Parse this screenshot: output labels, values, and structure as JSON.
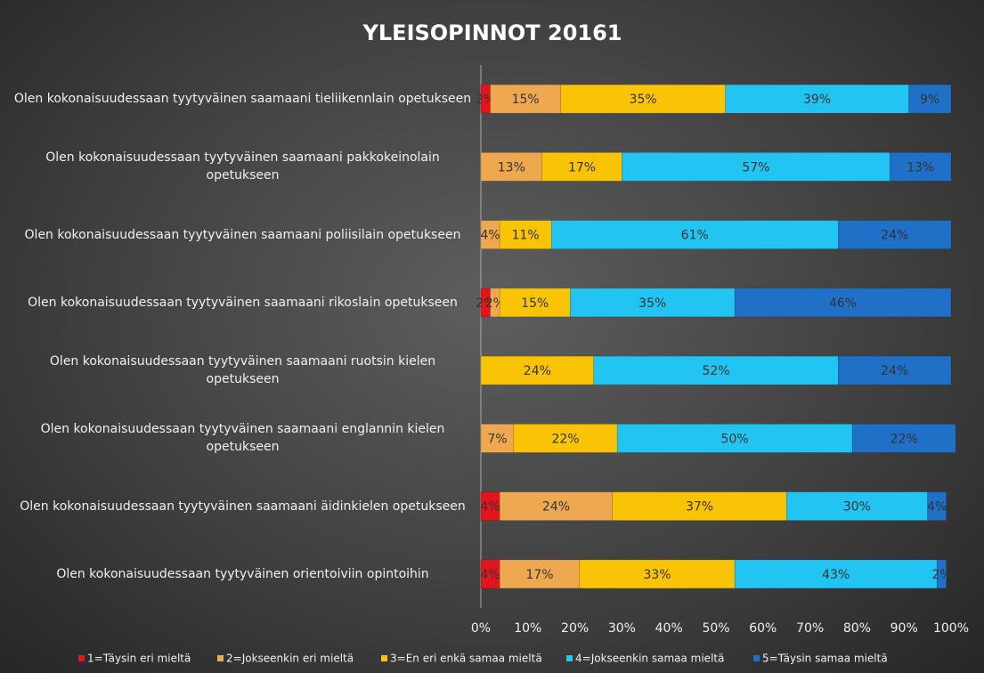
{
  "chart_data": {
    "type": "bar",
    "orientation": "horizontal",
    "stacked": true,
    "title": "YLEISOPINNOT 20161",
    "categories": [
      "Olen kokonaisuudessaan tyytyväinen saamaani tieliikennlain opetukseen",
      "Olen kokonaisuudessaan tyytyväinen saamaani pakkokeinolain opetukseen",
      "Olen kokonaisuudessaan tyytyväinen saamaani poliisilain opetukseen",
      "Olen kokonaisuudessaan tyytyväinen saamaani rikoslain opetukseen",
      "Olen kokonaisuudessaan tyytyväinen saamaani ruotsin kielen opetukseen",
      "Olen kokonaisuudessaan tyytyväinen saamaani englannin kielen opetukseen",
      "Olen kokonaisuudessaan tyytyväinen saamaani äidinkielen opetukseen",
      "Olen kokonaisuudessaan tyytyväinen orientoiviin opintoihin"
    ],
    "series": [
      {
        "name": "1=Täysin eri mieltä",
        "color": "#e3141c",
        "values": [
          2,
          null,
          null,
          2,
          null,
          null,
          4,
          4
        ],
        "value_labels": [
          "2%",
          null,
          null,
          "2%",
          null,
          null,
          "4%",
          "4%"
        ]
      },
      {
        "name": "2=Jokseenkin eri mieltä",
        "color": "#eea84f",
        "values": [
          15,
          13,
          4,
          2,
          null,
          7,
          24,
          17
        ],
        "value_labels": [
          "15%",
          "13%",
          "4%",
          "2%",
          null,
          "7%",
          "24%",
          "17%"
        ]
      },
      {
        "name": "3=En eri enkä samaa mieltä",
        "color": "#f8c405",
        "values": [
          35,
          17,
          11,
          15,
          24,
          22,
          37,
          33
        ],
        "value_labels": [
          "35%",
          "17%",
          "11%",
          "15%",
          "24%",
          "22%",
          "37%",
          "33%"
        ]
      },
      {
        "name": "4=Jokseenkin samaa mieltä",
        "color": "#22c4f2",
        "values": [
          39,
          57,
          61,
          35,
          52,
          50,
          30,
          43
        ],
        "value_labels": [
          "39%",
          "57%",
          "61%",
          "35%",
          "52%",
          "50%",
          "30%",
          "43%"
        ]
      },
      {
        "name": "5=Täysin samaa mieltä",
        "color": "#2070c8",
        "values": [
          9,
          13,
          24,
          46,
          24,
          22,
          4,
          2
        ],
        "value_labels": [
          "9%",
          "13%",
          "24%",
          "46%",
          "24%",
          "22%",
          "4%",
          "2%"
        ]
      }
    ],
    "xlim": [
      0,
      100
    ],
    "xticks": [
      {
        "value": 0,
        "label": "0%"
      },
      {
        "value": 10,
        "label": "10%"
      },
      {
        "value": 20,
        "label": "20%"
      },
      {
        "value": 30,
        "label": "30%"
      },
      {
        "value": 40,
        "label": "40%"
      },
      {
        "value": 50,
        "label": "50%"
      },
      {
        "value": 60,
        "label": "60%"
      },
      {
        "value": 70,
        "label": "70%"
      },
      {
        "value": 80,
        "label": "80%"
      },
      {
        "value": 90,
        "label": "90%"
      },
      {
        "value": 100,
        "label": "100%"
      }
    ],
    "grid": false,
    "legend": "bottom"
  }
}
